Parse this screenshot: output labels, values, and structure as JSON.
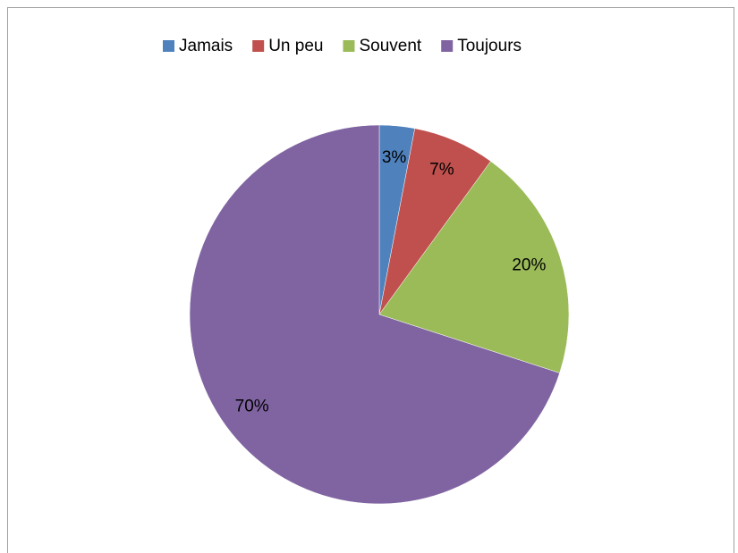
{
  "chart_data": {
    "type": "pie",
    "categories": [
      "Jamais",
      "Un peu",
      "Souvent",
      "Toujours"
    ],
    "values": [
      3,
      7,
      20,
      70
    ],
    "value_labels": [
      "3%",
      "7%",
      "20%",
      "70%"
    ],
    "colors": [
      "#4f81bd",
      "#c0504d",
      "#9bbb59",
      "#8064a2"
    ],
    "legend": "top"
  }
}
